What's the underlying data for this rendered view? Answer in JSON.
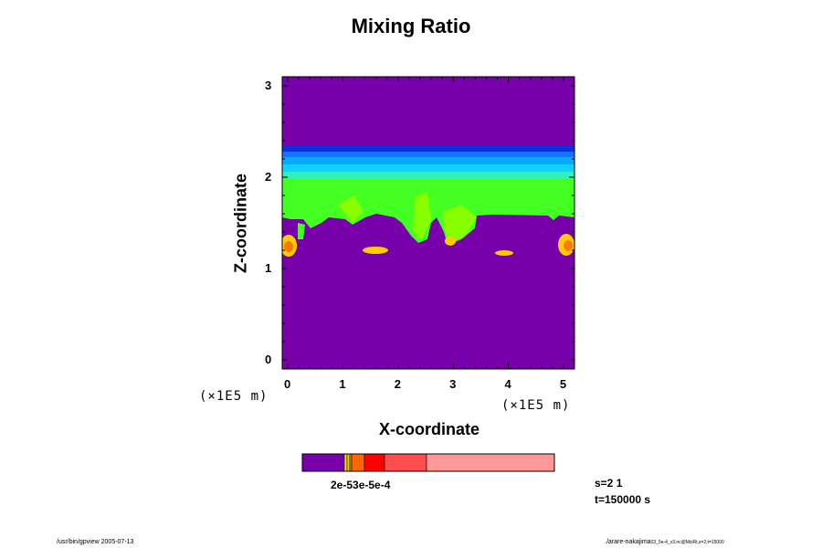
{
  "chart_data": {
    "type": "heatmap",
    "title": "Mixing Ratio",
    "xlabel": "X-coordinate",
    "ylabel": "Z-coordinate",
    "x_unit": "(×1E5 m)",
    "y_unit": "(×1E5 m)",
    "xlim": [
      -0.1,
      5.2
    ],
    "ylim": [
      -0.1,
      3.1
    ],
    "x_ticks": [
      "0",
      "1",
      "2",
      "3",
      "4",
      "5"
    ],
    "y_ticks": [
      "0",
      "1",
      "2",
      "3"
    ],
    "colorbar_label": "2e-53e-5e-4",
    "legend": "bottom",
    "colors": {
      "background": "#7700aa",
      "top_band": [
        "#0a30e0",
        "#1a70ff",
        "#0aa8ff",
        "#10d0ff",
        "#30f0c0"
      ],
      "green": "#44ff22",
      "lime": "#88ff00",
      "yellow": "#ffcc00",
      "orange": "#ff7700",
      "red": "#ff2000"
    },
    "colorbar_colors": [
      "#7700aa",
      "#ffcc00",
      "#ff9900",
      "#ff6600",
      "#ff0000",
      "#ff4d4d",
      "#ff9999"
    ]
  },
  "info": {
    "slice": "s=2 1",
    "time": "t=150000 s"
  },
  "footer": {
    "left": "/usr/bin/gpview 2005-07-13",
    "right": "./arare-nakajima",
    "right_small": "03_5e-4_v3.nc@MixRt,s=2,t=15000"
  }
}
